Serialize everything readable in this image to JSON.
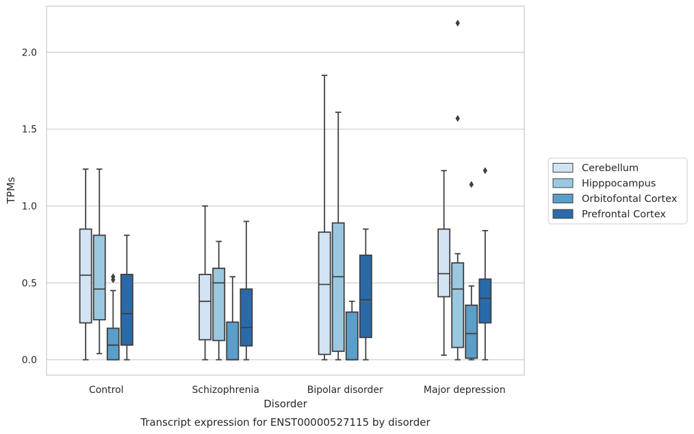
{
  "chart_data": {
    "type": "box",
    "title": "Transcript expression for ENST00000527115 by disorder",
    "xlabel": "Disorder",
    "ylabel": "TPMs",
    "ylim": [
      -0.1,
      2.3
    ],
    "yticks": [
      "0.0",
      "0.5",
      "1.0",
      "1.5",
      "2.0"
    ],
    "ytick_values": [
      0,
      0.5,
      1.0,
      1.5,
      2.0
    ],
    "grid": "horizontal",
    "legend_position": "right",
    "categories": [
      "Control",
      "Schizophrenia",
      "Bipolar disorder",
      "Major depression"
    ],
    "series": [
      {
        "name": "Cerebellum",
        "color": "#d2e3f3",
        "boxes": [
          {
            "whislo": 0.0,
            "q1": 0.24,
            "med": 0.55,
            "q3": 0.85,
            "whishi": 1.24,
            "fliers": []
          },
          {
            "whislo": 0.0,
            "q1": 0.13,
            "med": 0.38,
            "q3": 0.555,
            "whishi": 1.0,
            "fliers": []
          },
          {
            "whislo": 0.0,
            "q1": 0.035,
            "med": 0.49,
            "q3": 0.83,
            "whishi": 1.85,
            "fliers": []
          },
          {
            "whislo": 0.03,
            "q1": 0.41,
            "med": 0.56,
            "q3": 0.85,
            "whishi": 1.23,
            "fliers": []
          }
        ]
      },
      {
        "name": "Hipppocampus",
        "color": "#9ac8e0",
        "boxes": [
          {
            "whislo": 0.04,
            "q1": 0.26,
            "med": 0.46,
            "q3": 0.81,
            "whishi": 1.24,
            "fliers": []
          },
          {
            "whislo": 0.0,
            "q1": 0.125,
            "med": 0.5,
            "q3": 0.595,
            "whishi": 0.77,
            "fliers": []
          },
          {
            "whislo": 0.0,
            "q1": 0.055,
            "med": 0.54,
            "q3": 0.89,
            "whishi": 1.61,
            "fliers": []
          },
          {
            "whislo": 0.0,
            "q1": 0.08,
            "med": 0.46,
            "q3": 0.63,
            "whishi": 0.69,
            "fliers": [
              1.57,
              2.19
            ]
          }
        ]
      },
      {
        "name": "Orbitofontal Cortex",
        "color": "#5a9ec9",
        "boxes": [
          {
            "whislo": 0.0,
            "q1": 0.0,
            "med": 0.095,
            "q3": 0.205,
            "whishi": 0.45,
            "fliers": [
              0.52,
              0.54
            ]
          },
          {
            "whislo": 0.0,
            "q1": 0.0,
            "med": 0.0,
            "q3": 0.245,
            "whishi": 0.54,
            "fliers": []
          },
          {
            "whislo": 0.0,
            "q1": 0.0,
            "med": 0.0,
            "q3": 0.31,
            "whishi": 0.38,
            "fliers": []
          },
          {
            "whislo": 0.0,
            "q1": 0.01,
            "med": 0.17,
            "q3": 0.355,
            "whishi": 0.48,
            "fliers": [
              1.14
            ]
          }
        ]
      },
      {
        "name": "Prefrontal Cortex",
        "color": "#2b6aa8",
        "boxes": [
          {
            "whislo": 0.0,
            "q1": 0.095,
            "med": 0.3,
            "q3": 0.555,
            "whishi": 0.81,
            "fliers": []
          },
          {
            "whislo": 0.0,
            "q1": 0.09,
            "med": 0.21,
            "q3": 0.46,
            "whishi": 0.9,
            "fliers": []
          },
          {
            "whislo": 0.0,
            "q1": 0.145,
            "med": 0.39,
            "q3": 0.68,
            "whishi": 0.85,
            "fliers": []
          },
          {
            "whislo": 0.0,
            "q1": 0.24,
            "med": 0.4,
            "q3": 0.525,
            "whishi": 0.84,
            "fliers": [
              1.23
            ]
          }
        ]
      }
    ]
  }
}
